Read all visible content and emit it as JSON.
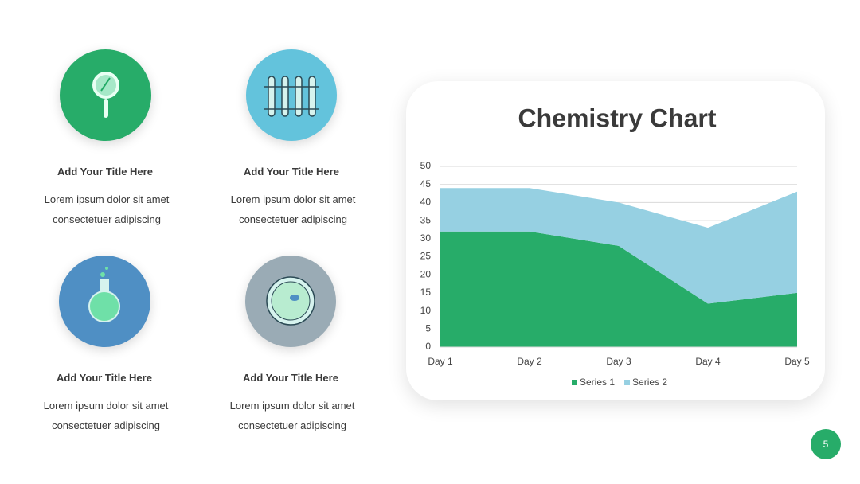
{
  "cards": [
    {
      "title": "Add Your Title Here",
      "lines": [
        "Lorem ipsum dolor sit amet",
        "consectetuer adipiscing"
      ]
    },
    {
      "title": "Add Your Title Here",
      "lines": [
        "Lorem ipsum dolor sit amet",
        "consectetuer adipiscing"
      ]
    },
    {
      "title": "Add Your Title Here",
      "lines": [
        "Lorem ipsum dolor sit amet",
        "consectetuer adipiscing"
      ]
    },
    {
      "title": "Add Your Title Here",
      "lines": [
        "Lorem ipsum dolor sit amet",
        "consectetuer adipiscing"
      ]
    }
  ],
  "page_number": "5",
  "chart_data": {
    "type": "area",
    "stacked": true,
    "title": "Chemistry Chart",
    "categories": [
      "Day 1",
      "Day 2",
      "Day 3",
      "Day 4",
      "Day 5"
    ],
    "series": [
      {
        "name": "Series 1",
        "color": "#27ac69",
        "values": [
          32,
          32,
          28,
          12,
          15
        ]
      },
      {
        "name": "Series 2",
        "color": "#96d0e2",
        "values": [
          12,
          12,
          12,
          21,
          28
        ]
      }
    ],
    "ylim": [
      0,
      50
    ],
    "yticks": [
      0,
      5,
      10,
      15,
      20,
      25,
      30,
      35,
      40,
      45,
      50
    ],
    "grid": true,
    "legend": "bottom"
  }
}
